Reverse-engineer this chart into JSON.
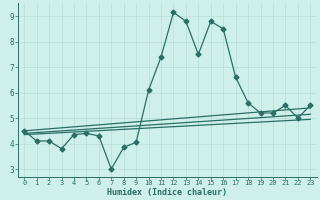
{
  "xlabel": "Humidex (Indice chaleur)",
  "bg_color": "#cff0ea",
  "grid_color": "#b8ddd6",
  "line_color": "#2a6e65",
  "xlim": [
    -0.5,
    23.5
  ],
  "ylim": [
    2.7,
    9.5
  ],
  "xticks": [
    0,
    1,
    2,
    3,
    4,
    5,
    6,
    7,
    8,
    9,
    10,
    11,
    12,
    13,
    14,
    15,
    16,
    17,
    18,
    19,
    20,
    21,
    22,
    23
  ],
  "yticks": [
    3,
    4,
    5,
    6,
    7,
    8,
    9
  ],
  "main_series": {
    "x": [
      0,
      1,
      2,
      3,
      4,
      5,
      6,
      7,
      8,
      9,
      10,
      11,
      12,
      13,
      14,
      15,
      16,
      17,
      18,
      19,
      20,
      21,
      22,
      23
    ],
    "y": [
      4.5,
      4.1,
      4.1,
      3.8,
      4.35,
      4.4,
      4.3,
      3.0,
      3.85,
      4.05,
      6.1,
      7.4,
      9.15,
      8.8,
      7.5,
      8.8,
      8.5,
      6.6,
      5.6,
      5.2,
      5.2,
      5.5,
      5.0,
      5.5
    ]
  },
  "flat_lines": [
    {
      "x": [
        0,
        23
      ],
      "y": [
        4.5,
        5.4
      ]
    },
    {
      "x": [
        0,
        23
      ],
      "y": [
        4.4,
        5.15
      ]
    },
    {
      "x": [
        0,
        23
      ],
      "y": [
        4.35,
        4.95
      ]
    }
  ]
}
